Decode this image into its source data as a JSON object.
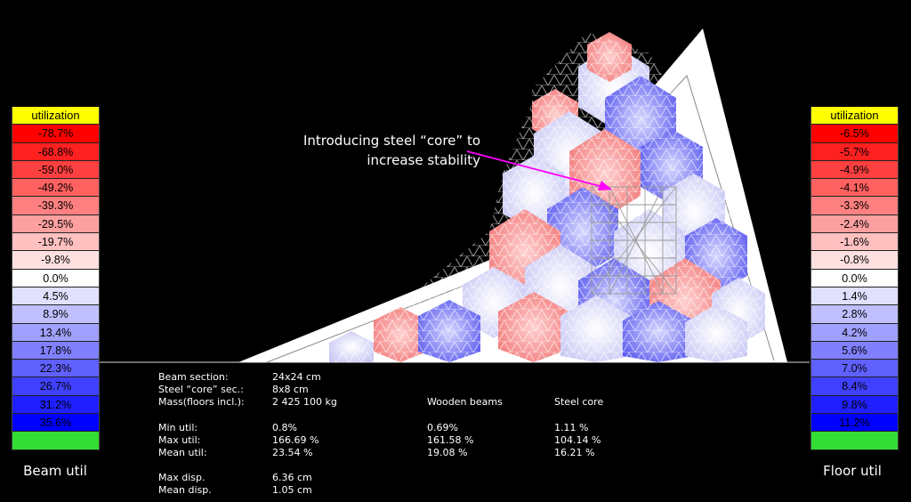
{
  "beam_legend": {
    "header": "utilization",
    "caption": "Beam util",
    "cells": [
      {
        "label": "-78.7%",
        "color": "#ff0000"
      },
      {
        "label": "-68.8%",
        "color": "#ff2020"
      },
      {
        "label": "-59.0%",
        "color": "#ff4040"
      },
      {
        "label": "-49.2%",
        "color": "#ff6060"
      },
      {
        "label": "-39.3%",
        "color": "#ff8080"
      },
      {
        "label": "-29.5%",
        "color": "#ffa0a0"
      },
      {
        "label": "-19.7%",
        "color": "#ffc0c0"
      },
      {
        "label": "-9.8%",
        "color": "#ffe0e0"
      },
      {
        "label": "0.0%",
        "color": "#ffffff"
      },
      {
        "label": "4.5%",
        "color": "#e0e0ff"
      },
      {
        "label": "8.9%",
        "color": "#c0c0ff"
      },
      {
        "label": "13.4%",
        "color": "#a0a0ff"
      },
      {
        "label": "17.8%",
        "color": "#8080ff"
      },
      {
        "label": "22.3%",
        "color": "#6060ff"
      },
      {
        "label": "26.7%",
        "color": "#4040ff"
      },
      {
        "label": "31.2%",
        "color": "#2020ff"
      },
      {
        "label": "35.6%",
        "color": "#0000ff"
      }
    ]
  },
  "floor_legend": {
    "header": "utilization",
    "caption": "Floor util",
    "cells": [
      {
        "label": "-6.5%",
        "color": "#ff0000"
      },
      {
        "label": "-5.7%",
        "color": "#ff2020"
      },
      {
        "label": "-4.9%",
        "color": "#ff4040"
      },
      {
        "label": "-4.1%",
        "color": "#ff6060"
      },
      {
        "label": "-3.3%",
        "color": "#ff8080"
      },
      {
        "label": "-2.4%",
        "color": "#ffa0a0"
      },
      {
        "label": "-1.6%",
        "color": "#ffc0c0"
      },
      {
        "label": "-0.8%",
        "color": "#ffe0e0"
      },
      {
        "label": "0.0%",
        "color": "#ffffff"
      },
      {
        "label": "1.4%",
        "color": "#e0e0ff"
      },
      {
        "label": "2.8%",
        "color": "#c0c0ff"
      },
      {
        "label": "4.2%",
        "color": "#a0a0ff"
      },
      {
        "label": "5.6%",
        "color": "#8080ff"
      },
      {
        "label": "7.0%",
        "color": "#6060ff"
      },
      {
        "label": "8.4%",
        "color": "#4040ff"
      },
      {
        "label": "9.8%",
        "color": "#2020ff"
      },
      {
        "label": "11.2%",
        "color": "#0000ff"
      }
    ]
  },
  "legend_colors": {
    "header": "#ffff00",
    "footer": "#33dd33"
  },
  "annotation": {
    "line1": "Introducing steel “core” to",
    "line2": "increase stability",
    "arrow_color": "#ff00ff"
  },
  "stats": {
    "beam_section_label": "Beam section:",
    "beam_section_value": "24x24 cm",
    "steel_core_label": "Steel “core” sec.:",
    "steel_core_value": "8x8 cm",
    "mass_label": "Mass(floors incl.):",
    "mass_value": "2 425 100 kg",
    "col_wooden": "Wooden beams",
    "col_steel": "Steel core",
    "min_label": "Min util:",
    "min_total": "0.8%",
    "min_wood": "0.69%",
    "min_steel": "1.11 %",
    "max_label": "Max util:",
    "max_total": "166.69 %",
    "max_wood": "161.58 %",
    "max_steel": "104.14 %",
    "mean_label": "Mean util:",
    "mean_total": "23.54 %",
    "mean_wood": "19.08 %",
    "mean_steel": "16.21 %",
    "maxdisp_label": "Max disp.",
    "maxdisp_value": "6.36 cm",
    "meandisp_label": "Mean disp.",
    "meandisp_value": "1.05 cm"
  }
}
